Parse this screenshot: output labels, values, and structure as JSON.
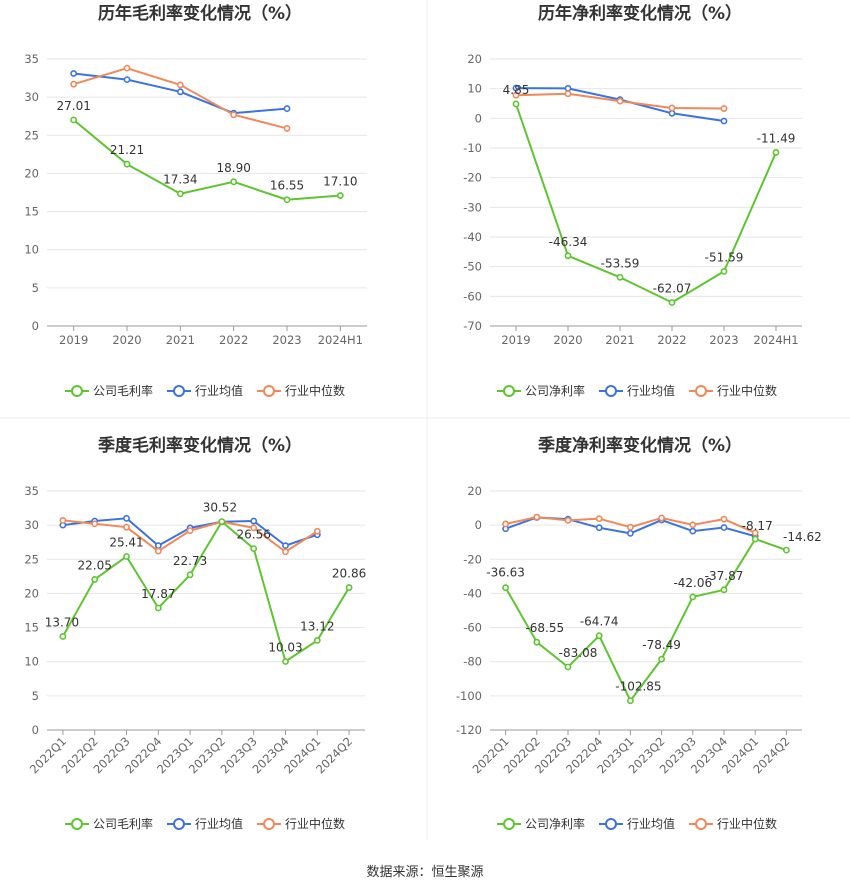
{
  "colors": {
    "company": "#5ec531",
    "industry_avg": "#3b73e0",
    "industry_median": "#f0885a",
    "grid": "#e6e6e6",
    "axis": "#999999",
    "divider": "#eeeeee"
  },
  "footer": {
    "source": "数据来源：恒生聚源"
  },
  "chart_data": [
    {
      "id": "annual-gross",
      "type": "line",
      "title": "历年毛利率变化情况（%）",
      "categories": [
        "2019",
        "2020",
        "2021",
        "2022",
        "2023",
        "2024H1"
      ],
      "ylim": [
        0,
        35
      ],
      "yticks": [
        0,
        5,
        10,
        15,
        20,
        25,
        30,
        35
      ],
      "rotate_xticks": false,
      "series": [
        {
          "name": "公司毛利率",
          "role": "company",
          "values": [
            27.01,
            21.21,
            17.34,
            18.9,
            16.55,
            17.1
          ],
          "labels": [
            "27.01",
            "21.21",
            "17.34",
            "18.90",
            "16.55",
            "17.10"
          ]
        },
        {
          "name": "行业均值",
          "role": "industry_avg",
          "values": [
            33.1,
            32.3,
            30.7,
            27.9,
            28.5,
            null
          ]
        },
        {
          "name": "行业中位数",
          "role": "industry_median",
          "values": [
            31.7,
            33.8,
            31.6,
            27.7,
            25.9,
            null
          ]
        }
      ]
    },
    {
      "id": "annual-net",
      "type": "line",
      "title": "历年净利率变化情况（%）",
      "categories": [
        "2019",
        "2020",
        "2021",
        "2022",
        "2023",
        "2024H1"
      ],
      "ylim": [
        -70,
        20
      ],
      "yticks": [
        -70,
        -60,
        -50,
        -40,
        -30,
        -20,
        -10,
        0,
        10,
        20
      ],
      "rotate_xticks": false,
      "series": [
        {
          "name": "公司净利率",
          "role": "company",
          "values": [
            4.85,
            -46.34,
            -53.59,
            -62.07,
            -51.59,
            -11.49
          ],
          "labels": [
            "4.85",
            "-46.34",
            "-53.59",
            "-62.07",
            "-51.59",
            "-11.49"
          ]
        },
        {
          "name": "行业均值",
          "role": "industry_avg",
          "values": [
            10.2,
            10.1,
            6.3,
            1.7,
            -0.9,
            null
          ]
        },
        {
          "name": "行业中位数",
          "role": "industry_median",
          "values": [
            7.8,
            8.3,
            5.8,
            3.5,
            3.3,
            null
          ]
        }
      ]
    },
    {
      "id": "quarterly-gross",
      "type": "line",
      "title": "季度毛利率变化情况（%）",
      "categories": [
        "2022Q1",
        "2022Q2",
        "2022Q3",
        "2022Q4",
        "2023Q1",
        "2023Q2",
        "2023Q3",
        "2023Q4",
        "2024Q1",
        "2024Q2"
      ],
      "ylim": [
        0,
        35
      ],
      "yticks": [
        0,
        5,
        10,
        15,
        20,
        25,
        30,
        35
      ],
      "rotate_xticks": true,
      "series": [
        {
          "name": "公司毛利率",
          "role": "company",
          "values": [
            13.7,
            22.05,
            25.41,
            17.87,
            22.73,
            30.52,
            26.56,
            10.03,
            13.12,
            20.86
          ],
          "labels": [
            "13.70",
            "22.05",
            "25.41",
            "17.87",
            "22.73",
            "30.52",
            "26.56",
            "10.03",
            "13.12",
            "20.86"
          ]
        },
        {
          "name": "行业均值",
          "role": "industry_avg",
          "values": [
            30.0,
            30.6,
            31.0,
            27.0,
            29.6,
            30.5,
            30.6,
            27.0,
            28.6,
            null
          ]
        },
        {
          "name": "行业中位数",
          "role": "industry_median",
          "values": [
            30.7,
            30.2,
            29.7,
            26.2,
            29.2,
            30.5,
            29.6,
            26.1,
            29.1,
            null
          ]
        }
      ]
    },
    {
      "id": "quarterly-net",
      "type": "line",
      "title": "季度净利率变化情况（%）",
      "categories": [
        "2022Q1",
        "2022Q2",
        "2022Q3",
        "2022Q4",
        "2023Q1",
        "2023Q2",
        "2023Q3",
        "2023Q4",
        "2024Q1",
        "2024Q2"
      ],
      "ylim": [
        -120,
        20
      ],
      "yticks": [
        -120,
        -100,
        -80,
        -60,
        -40,
        -20,
        0,
        20
      ],
      "rotate_xticks": true,
      "series": [
        {
          "name": "公司净利率",
          "role": "company",
          "values": [
            -36.63,
            -68.55,
            -83.08,
            -64.74,
            -102.85,
            -78.49,
            -42.06,
            -37.87,
            -8.17,
            -14.62
          ],
          "labels": [
            "-36.63",
            "-68.55",
            "-83.08",
            "-64.74",
            "-102.85",
            "-78.49",
            "-42.06",
            "-37.87",
            "-8.17",
            "-14.62"
          ]
        },
        {
          "name": "行业均值",
          "role": "industry_avg",
          "values": [
            -2.1,
            4.5,
            3.5,
            -1.5,
            -4.8,
            3.0,
            -3.5,
            -1.4,
            -6.5,
            null
          ]
        },
        {
          "name": "行业中位数",
          "role": "industry_median",
          "values": [
            0.7,
            4.7,
            2.8,
            3.8,
            -1.2,
            4.2,
            0.2,
            3.5,
            -4.5,
            null
          ]
        }
      ]
    }
  ]
}
